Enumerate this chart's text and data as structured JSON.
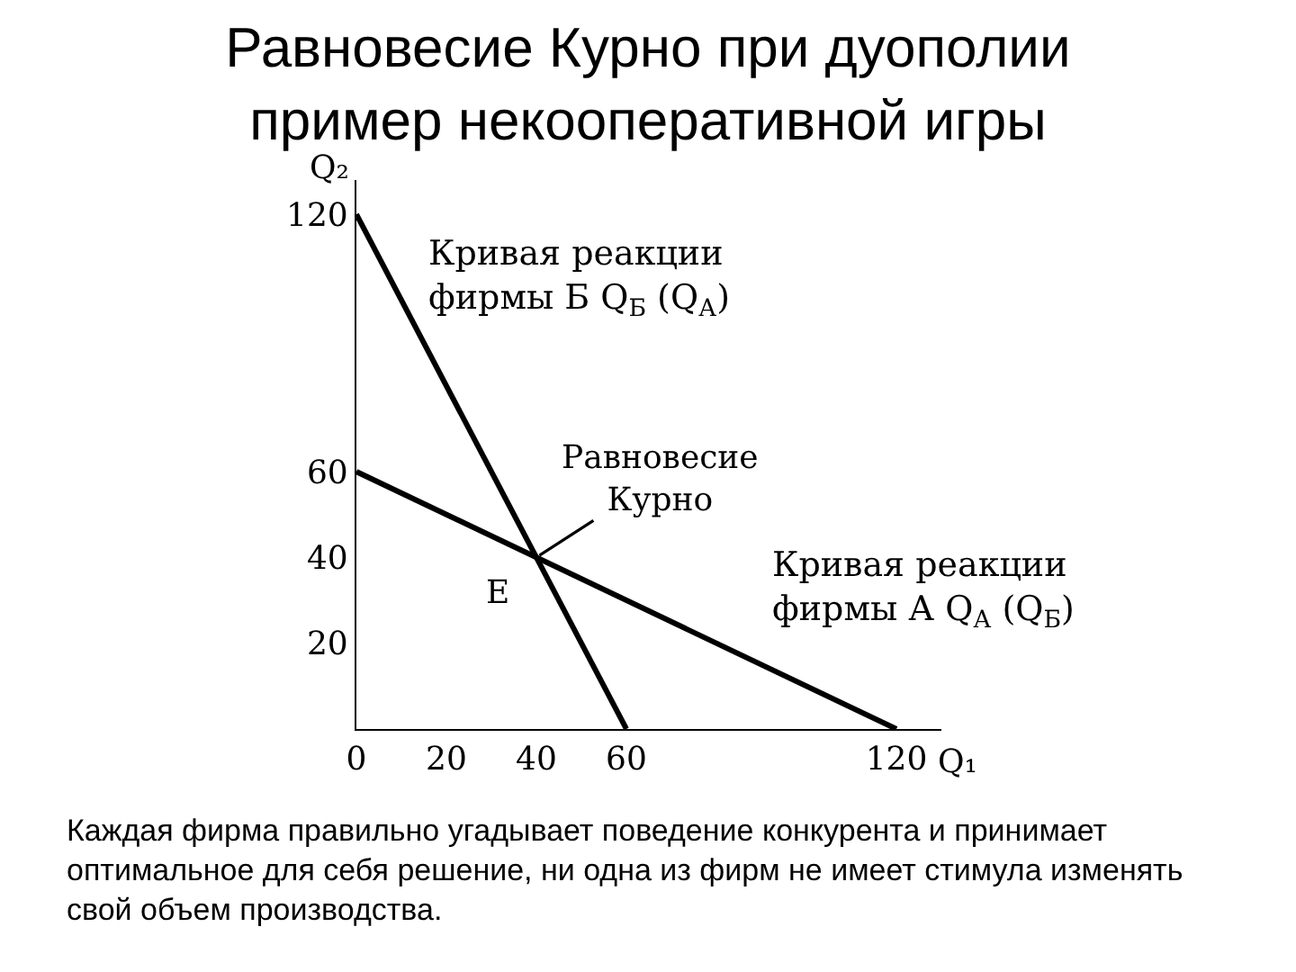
{
  "chart_data": {
    "type": "line",
    "title": "Равновесие Курно при дуополии\nпример некооперативной игры",
    "xlabel": "Q₁",
    "ylabel": "Q₂",
    "series": [
      {
        "name": "Кривая реакции\nфирмы Б Q$_{Б}$ (Q$_{А}$)",
        "color": "#000000",
        "x": [
          0,
          60
        ],
        "values": [
          120,
          0
        ]
      },
      {
        "name": "Кривая реакции\nфирмы А Q$_{А}$ (Q$_{Б}$)",
        "color": "#000000",
        "x": [
          0,
          120
        ],
        "values": [
          60,
          0
        ]
      }
    ],
    "annotations": [
      {
        "text": "Равновесие\nКурно",
        "x": 40,
        "y": 40
      },
      {
        "text": "E",
        "x": 40,
        "y": 40
      },
      "Каждая фирма правильно угадывает поведение конкурента и принимает\nоптимальное для себя решение, ни одна из фирм не имеет стимула изменять\nсвой объем производства."
    ],
    "xlim": [
      0,
      130
    ],
    "ylim": [
      0,
      128
    ],
    "xticks": [
      0,
      20,
      40,
      60,
      120
    ],
    "yticks": [
      20,
      40,
      60,
      120
    ],
    "legend": false,
    "marker": "none",
    "line_style": "solid"
  }
}
